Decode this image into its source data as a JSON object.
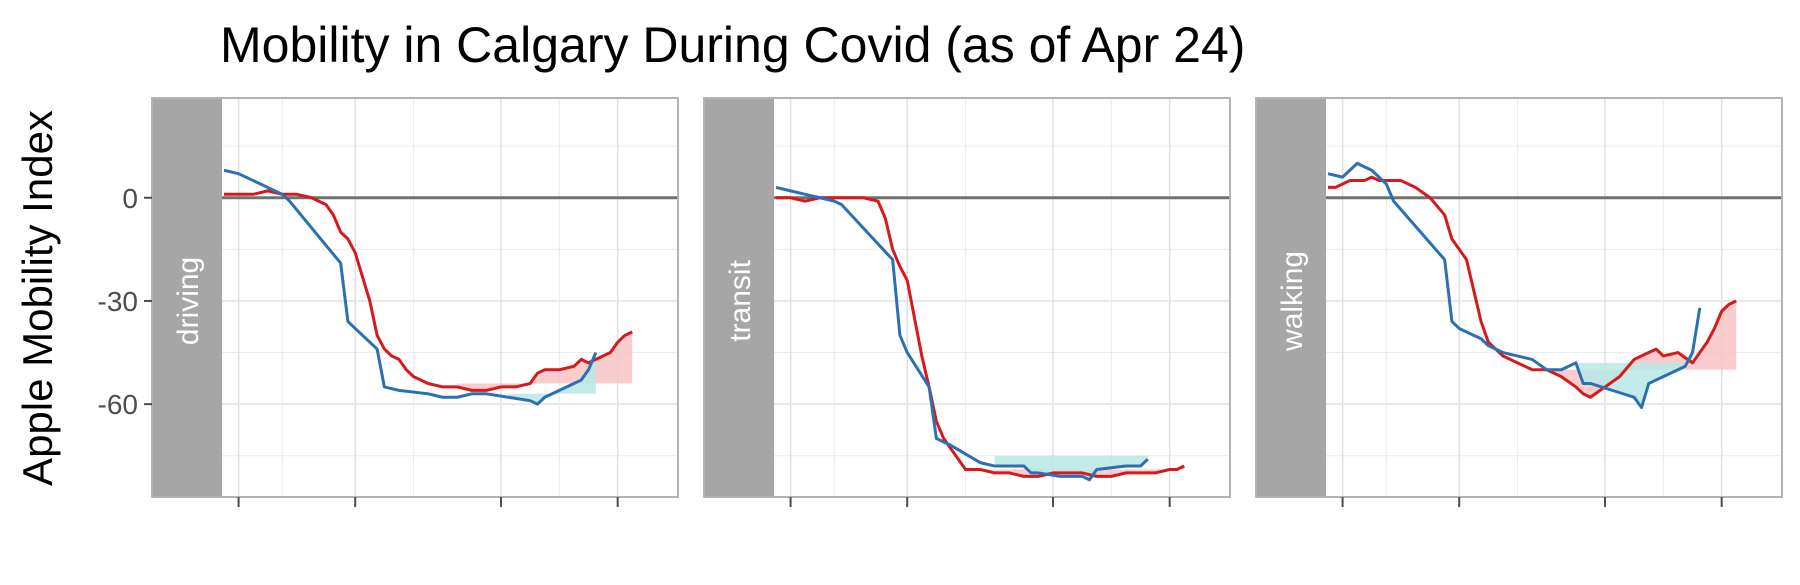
{
  "title": "Mobility in Calgary During Covid (as of Apr 24)",
  "chart_data": {
    "type": "line",
    "title": "Mobility in Calgary During Covid (as of Apr 24)",
    "ylabel": "Apple Mobility Index",
    "xlabel": "",
    "ylim": [
      -87,
      29
    ],
    "xlim": [
      0,
      62
    ],
    "yticks": [
      0,
      -30,
      -60
    ],
    "grid": true,
    "legend": "none",
    "colors": {
      "red_line": "#d7191c",
      "blue_line": "#2c6fb3",
      "red_fill": "#f8c0c2",
      "cyan_fill": "#b9e8e6",
      "baseline": "#707070",
      "strip": "#a6a6a6",
      "grid": "#e0e0e0",
      "border": "#b3b3b3"
    },
    "panels": [
      {
        "label": "driving",
        "red": {
          "x": [
            0,
            2,
            4,
            6,
            8,
            10,
            12,
            14,
            15,
            16,
            17,
            18,
            20,
            21,
            22,
            23,
            24,
            25,
            26,
            28,
            30,
            32,
            34,
            36,
            38,
            40,
            42,
            43,
            44,
            46,
            48,
            49,
            50,
            51,
            52,
            53,
            54,
            55,
            56
          ],
          "values": [
            1,
            1,
            1,
            2,
            1,
            1,
            0,
            -2,
            -5,
            -10,
            -12,
            -16,
            -30,
            -40,
            -44,
            -46,
            -47,
            -50,
            -52,
            -54,
            -55,
            -55,
            -56,
            -56,
            -55,
            -55,
            -54,
            -51,
            -50,
            -50,
            -49,
            -47,
            -48,
            -47,
            -46,
            -45,
            -42,
            -40,
            -39
          ]
        },
        "blue": {
          "x": [
            0,
            2,
            4,
            6,
            8,
            9,
            16,
            17,
            18,
            21,
            22,
            24,
            28,
            30,
            32,
            34,
            35,
            36,
            39,
            42,
            43,
            44,
            48,
            49,
            50,
            51
          ],
          "values": [
            8,
            7,
            5,
            3,
            1,
            -1,
            -19,
            -36,
            -38,
            -44,
            -55,
            -56,
            -57,
            -58,
            -58,
            -57,
            -57,
            -57,
            -58,
            -59,
            -60,
            -58,
            -54,
            -53,
            -50,
            -45
          ]
        },
        "red_band": {
          "x": [
            32,
            56
          ],
          "level": -54
        },
        "cyan_band": {
          "x": [
            37,
            51
          ],
          "level": -57
        }
      },
      {
        "label": "transit",
        "red": {
          "x": [
            0,
            2,
            4,
            6,
            8,
            10,
            12,
            14,
            15,
            16,
            17,
            18,
            20,
            21,
            22,
            23,
            24,
            25,
            26,
            28,
            30,
            32,
            34,
            36,
            38,
            40,
            42,
            44,
            46,
            48,
            50,
            52,
            54,
            55,
            56
          ],
          "values": [
            0,
            0,
            -1,
            0,
            0,
            0,
            0,
            -1,
            -6,
            -15,
            -20,
            -24,
            -46,
            -55,
            -65,
            -70,
            -73,
            -76,
            -79,
            -79,
            -80,
            -80,
            -81,
            -81,
            -80,
            -80,
            -80,
            -81,
            -81,
            -80,
            -80,
            -80,
            -79,
            -79,
            -78
          ]
        },
        "blue": {
          "x": [
            0,
            2,
            4,
            6,
            8,
            9,
            16,
            17,
            18,
            21,
            22,
            24,
            28,
            30,
            32,
            34,
            35,
            36,
            39,
            42,
            43,
            44,
            48,
            49,
            50,
            51
          ],
          "values": [
            3,
            2,
            1,
            0,
            -1,
            -2,
            -18,
            -40,
            -45,
            -55,
            -70,
            -72,
            -77,
            -78,
            -78,
            -78,
            -80,
            -80,
            -81,
            -81,
            -82,
            -79,
            -78,
            -78,
            -78,
            -76
          ]
        },
        "red_band": {
          "x": [
            26,
            56
          ],
          "level": -79
        },
        "cyan_band": {
          "x": [
            29,
            51
          ],
          "level": -75
        }
      },
      {
        "label": "walking",
        "red": {
          "x": [
            0,
            1,
            2,
            3,
            4,
            5,
            6,
            7,
            8,
            9,
            10,
            11,
            12,
            14,
            16,
            17,
            18,
            19,
            20,
            21,
            22,
            24,
            26,
            28,
            30,
            32,
            34,
            35,
            36,
            38,
            40,
            42,
            44,
            45,
            46,
            48,
            50,
            52,
            53,
            54,
            55,
            56
          ],
          "values": [
            3,
            3,
            4,
            5,
            5,
            5,
            6,
            5,
            5,
            5,
            5,
            4,
            3,
            0,
            -5,
            -12,
            -15,
            -18,
            -27,
            -36,
            -42,
            -46,
            -48,
            -50,
            -50,
            -52,
            -55,
            -57,
            -58,
            -55,
            -52,
            -47,
            -45,
            -44,
            -46,
            -45,
            -48,
            -42,
            -38,
            -33,
            -31,
            -30
          ]
        },
        "blue": {
          "x": [
            0,
            2,
            4,
            6,
            8,
            9,
            16,
            17,
            18,
            21,
            22,
            24,
            28,
            30,
            32,
            34,
            35,
            36,
            39,
            42,
            43,
            44,
            48,
            49,
            50,
            51
          ],
          "values": [
            7,
            6,
            10,
            8,
            4,
            -1,
            -18,
            -36,
            -38,
            -41,
            -43,
            -45,
            -47,
            -50,
            -50,
            -48,
            -54,
            -54,
            -56,
            -58,
            -61,
            -54,
            -50,
            -49,
            -45,
            -32
          ]
        },
        "red_band": {
          "x": [
            30,
            56
          ],
          "level": -50
        },
        "cyan_band": {
          "x": [
            33,
            50
          ],
          "level": -48
        }
      }
    ]
  }
}
